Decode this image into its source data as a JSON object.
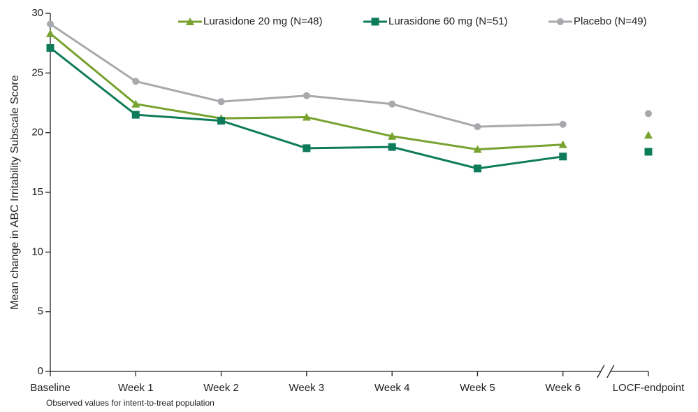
{
  "chart_data": {
    "type": "line",
    "y_axis_label": "Mean change in ABC Irritability Subscale Score",
    "footnote": "Observed values for intent-to-treat population",
    "categories": [
      "Baseline",
      "Week 1",
      "Week 2",
      "Week 3",
      "Week 4",
      "Week 5",
      "Week 6",
      "LOCF-endpoint"
    ],
    "x_axis_break_after": 6,
    "series": [
      {
        "name": "Lurasidone 20 mg (N=48)",
        "color": "#78a22f",
        "marker": "triangle",
        "values": [
          28.3,
          22.4,
          21.2,
          21.3,
          19.7,
          18.6,
          19.0,
          19.8
        ]
      },
      {
        "name": "Lurasidone 60 mg (N=51)",
        "color": "#0e7c5a",
        "marker": "square",
        "values": [
          27.1,
          21.5,
          21.0,
          18.7,
          18.8,
          17.0,
          18.0,
          18.4
        ]
      },
      {
        "name": "Placebo (N=49)",
        "color": "#a7a9ac",
        "marker": "circle",
        "values": [
          29.1,
          24.3,
          22.6,
          23.1,
          22.4,
          20.5,
          20.7,
          21.6
        ]
      }
    ],
    "ylim": [
      0,
      30
    ],
    "yticks": [
      0,
      5,
      10,
      15,
      20,
      25,
      30
    ],
    "grid": false,
    "legend": "top"
  }
}
